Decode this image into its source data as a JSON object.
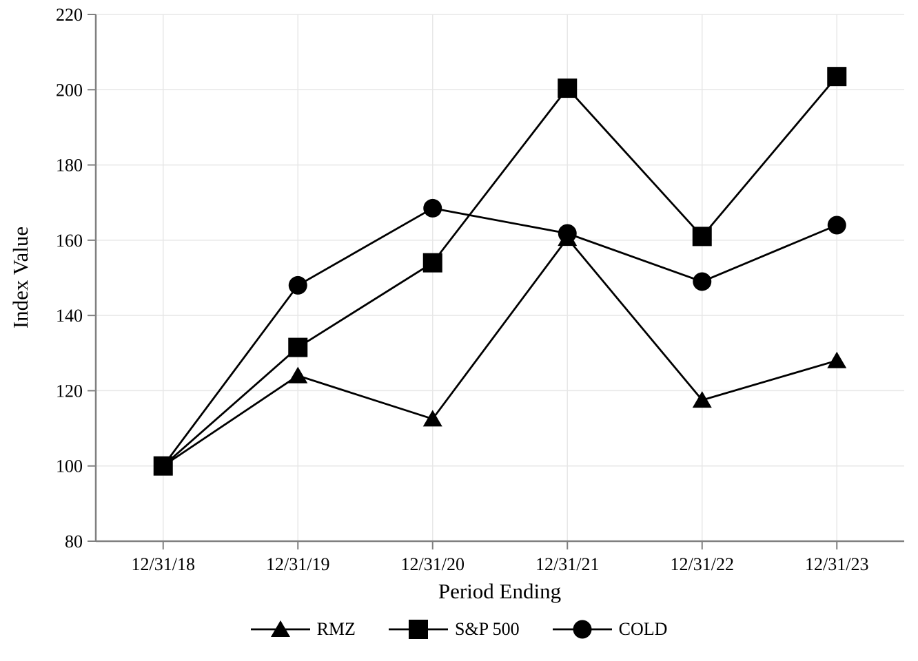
{
  "chart_data": {
    "type": "line",
    "title": "",
    "xlabel": "Period Ending",
    "ylabel": "Index Value",
    "categories": [
      "12/31/18",
      "12/31/19",
      "12/31/20",
      "12/31/21",
      "12/31/22",
      "12/31/23"
    ],
    "series": [
      {
        "name": "RMZ",
        "marker": "triangle",
        "values": [
          100,
          124,
          112.5,
          160.5,
          117.5,
          128
        ]
      },
      {
        "name": "S&P 500",
        "marker": "square",
        "values": [
          100,
          131.5,
          154,
          200.4,
          161,
          203.5
        ]
      },
      {
        "name": "COLD",
        "marker": "circle",
        "values": [
          100,
          148,
          168.5,
          161.8,
          149,
          164
        ]
      }
    ],
    "ylim": [
      80,
      220
    ],
    "yticks": [
      80,
      100,
      120,
      140,
      160,
      180,
      200,
      220
    ],
    "grid": true,
    "legend_position": "bottom",
    "colors": {
      "series": "#000000",
      "gridline": "#e7e7e7",
      "axis": "#808080",
      "text": "#000000",
      "background": "#ffffff"
    }
  }
}
